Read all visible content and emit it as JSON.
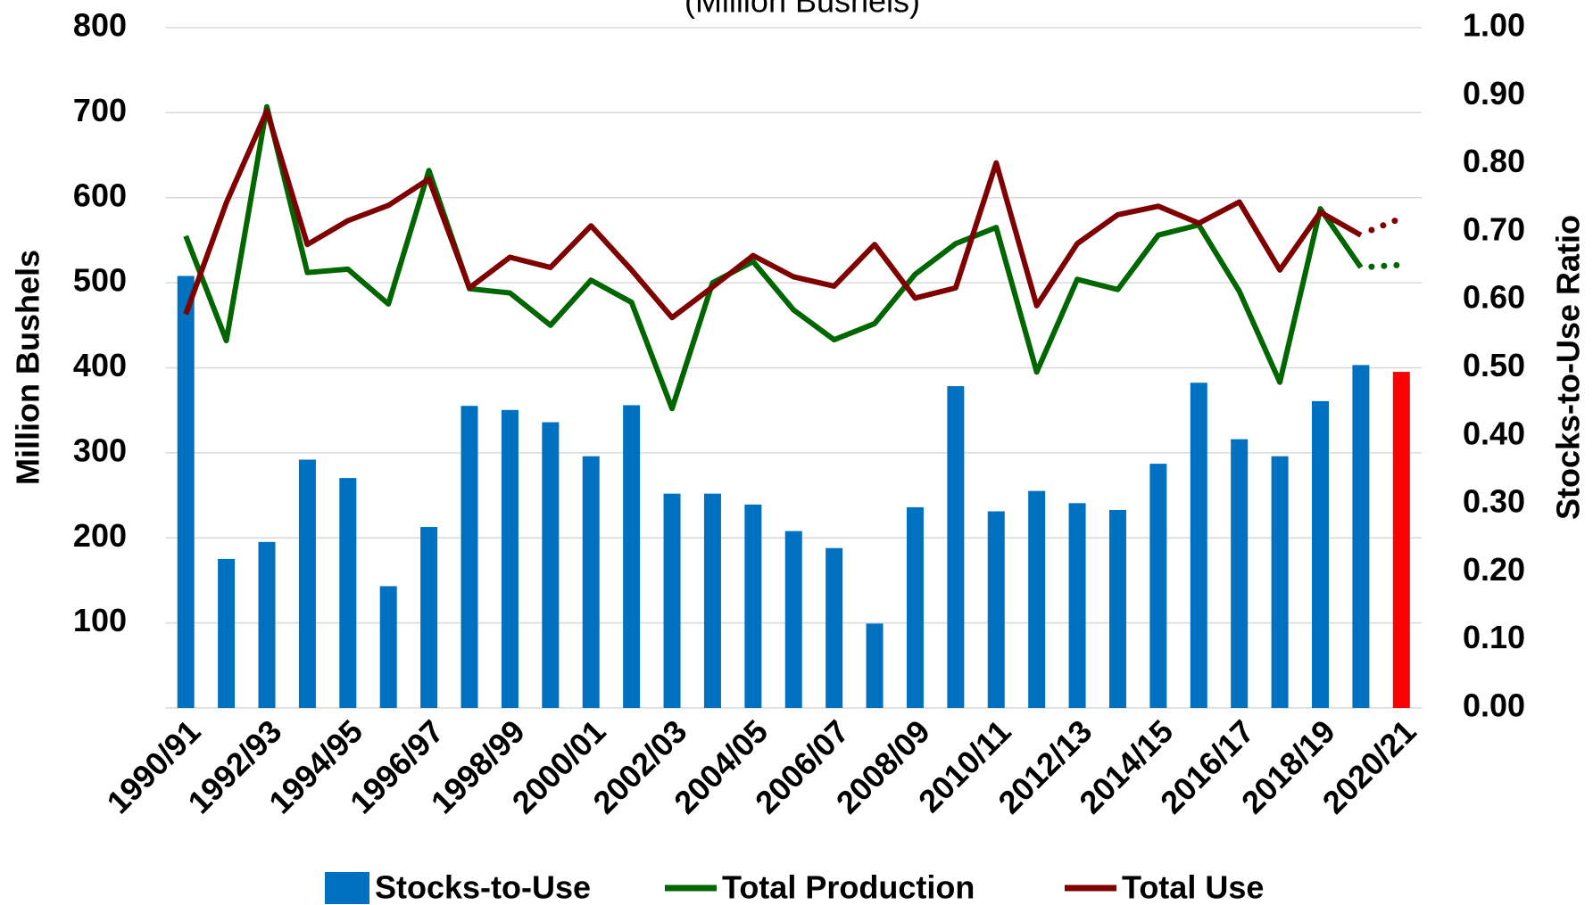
{
  "chart_data": {
    "type": "bar_line",
    "subtitle": "(Million Bushels)",
    "ylabel": "Million Bushels",
    "y2label": "Stocks-to-Use Ratio",
    "categories": [
      "1990/91",
      null,
      "1992/93",
      null,
      "1994/95",
      null,
      "1996/97",
      null,
      "1998/99",
      null,
      "2000/01",
      null,
      "2002/03",
      null,
      "2004/05",
      null,
      "2006/07",
      null,
      "2008/09",
      null,
      "2010/11",
      null,
      "2012/13",
      null,
      "2014/15",
      null,
      "2016/17",
      null,
      "2018/19",
      null,
      "2020/21"
    ],
    "series": [
      {
        "name": "Stocks-to-Use",
        "kind": "bar",
        "axis": "y2",
        "color": "#0070c0",
        "colors": [
          "#0070c0",
          "#0070c0",
          "#0070c0",
          "#0070c0",
          "#0070c0",
          "#0070c0",
          "#0070c0",
          "#0070c0",
          "#0070c0",
          "#0070c0",
          "#0070c0",
          "#0070c0",
          "#0070c0",
          "#0070c0",
          "#0070c0",
          "#0070c0",
          "#0070c0",
          "#0070c0",
          "#0070c0",
          "#0070c0",
          "#0070c0",
          "#0070c0",
          "#0070c0",
          "#0070c0",
          "#0070c0",
          "#0070c0",
          "#0070c0",
          "#0070c0",
          "#0070c0",
          "#0070c0",
          "#ff0000"
        ],
        "values": [
          0.635,
          0.219,
          0.244,
          0.365,
          0.338,
          0.179,
          0.266,
          0.444,
          0.438,
          0.42,
          0.37,
          0.445,
          0.315,
          0.315,
          0.299,
          0.26,
          0.235,
          0.124,
          0.295,
          0.473,
          0.289,
          0.319,
          0.301,
          0.291,
          0.359,
          0.478,
          0.395,
          0.37,
          0.451,
          0.504,
          0.494
        ]
      },
      {
        "name": "Total Production",
        "kind": "line",
        "axis": "y",
        "color": "#006600",
        "values": [
          555,
          432,
          707,
          512,
          516,
          475,
          632,
          493,
          488,
          450,
          503,
          477,
          352,
          500,
          525,
          468,
          433,
          452,
          510,
          546,
          565,
          395,
          504,
          492,
          556,
          568,
          490,
          383,
          587,
          518,
          521
        ]
      },
      {
        "name": "Total Use",
        "kind": "line",
        "axis": "y",
        "color": "#7f0000",
        "values": [
          463,
          594,
          702,
          545,
          573,
          591,
          622,
          494,
          530,
          518,
          567,
          515,
          459,
          495,
          532,
          507,
          496,
          545,
          482,
          494,
          641,
          473,
          546,
          580,
          590,
          570,
          595,
          515,
          583,
          556,
          576
        ]
      }
    ],
    "dotted_last_segment": true,
    "ylim": [
      0,
      800
    ],
    "yticks": [
      100,
      200,
      300,
      400,
      500,
      600,
      700,
      800
    ],
    "y2lim": [
      0,
      1
    ],
    "y2ticks": [
      {
        "value": 0,
        "label": "0.00"
      },
      {
        "value": 0.1,
        "label": "0.10"
      },
      {
        "value": 0.2,
        "label": "0.20"
      },
      {
        "value": 0.3,
        "label": "0.30"
      },
      {
        "value": 0.4,
        "label": "0.40"
      },
      {
        "value": 0.5,
        "label": "0.50"
      },
      {
        "value": 0.6,
        "label": "0.60"
      },
      {
        "value": 0.7,
        "label": "0.70"
      },
      {
        "value": 0.8,
        "label": "0.80"
      },
      {
        "value": 0.9,
        "label": "0.90"
      },
      {
        "value": 1,
        "label": "1.00"
      }
    ],
    "grid": true,
    "legend": "bottom"
  }
}
